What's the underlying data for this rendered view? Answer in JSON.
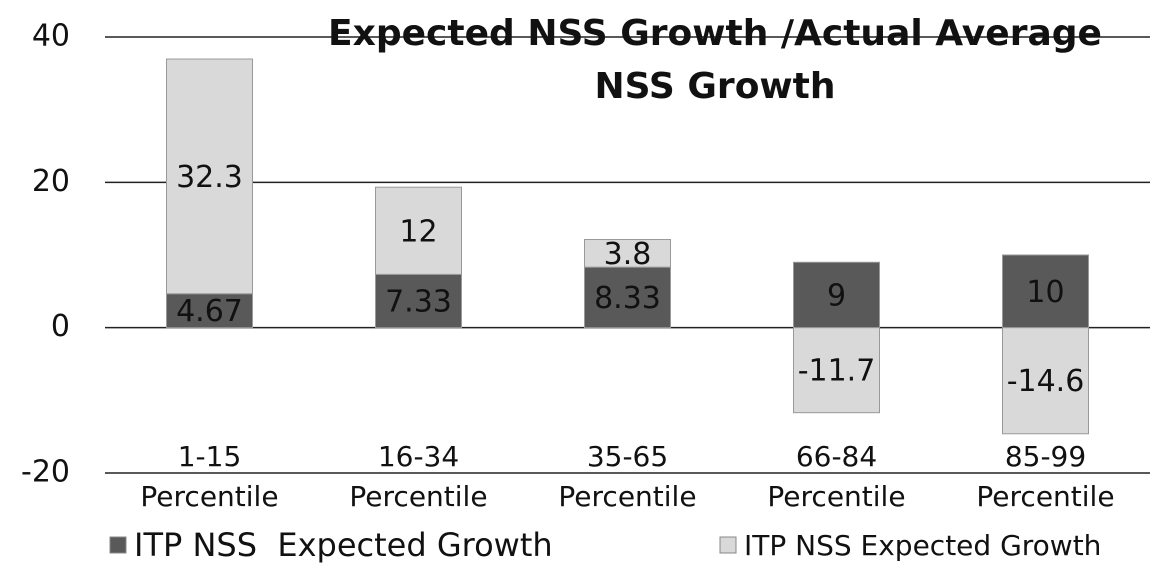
{
  "chart_data": {
    "type": "stacked_bar",
    "title": [
      "Expected NSS Growth /Actual Average",
      "NSS Growth"
    ],
    "categories": [
      [
        "1-15",
        "Percentile"
      ],
      [
        "16-34",
        "Percentile"
      ],
      [
        "35-65",
        "Percentile"
      ],
      [
        "66-84",
        "Percentile"
      ],
      [
        "85-99",
        "Percentile"
      ]
    ],
    "series": [
      {
        "name": "ITP NSS  Expected Growth",
        "color": "#595959",
        "values": [
          4.67,
          7.33,
          8.33,
          9,
          10
        ]
      },
      {
        "name": "ITP NSS Expected Growth",
        "color": "#d9d9d9",
        "values": [
          32.3,
          12,
          3.8,
          -11.7,
          -14.6
        ]
      }
    ],
    "ylim": [
      -20,
      40
    ],
    "yticks": [
      -20,
      0,
      20,
      40
    ],
    "grid": true
  }
}
